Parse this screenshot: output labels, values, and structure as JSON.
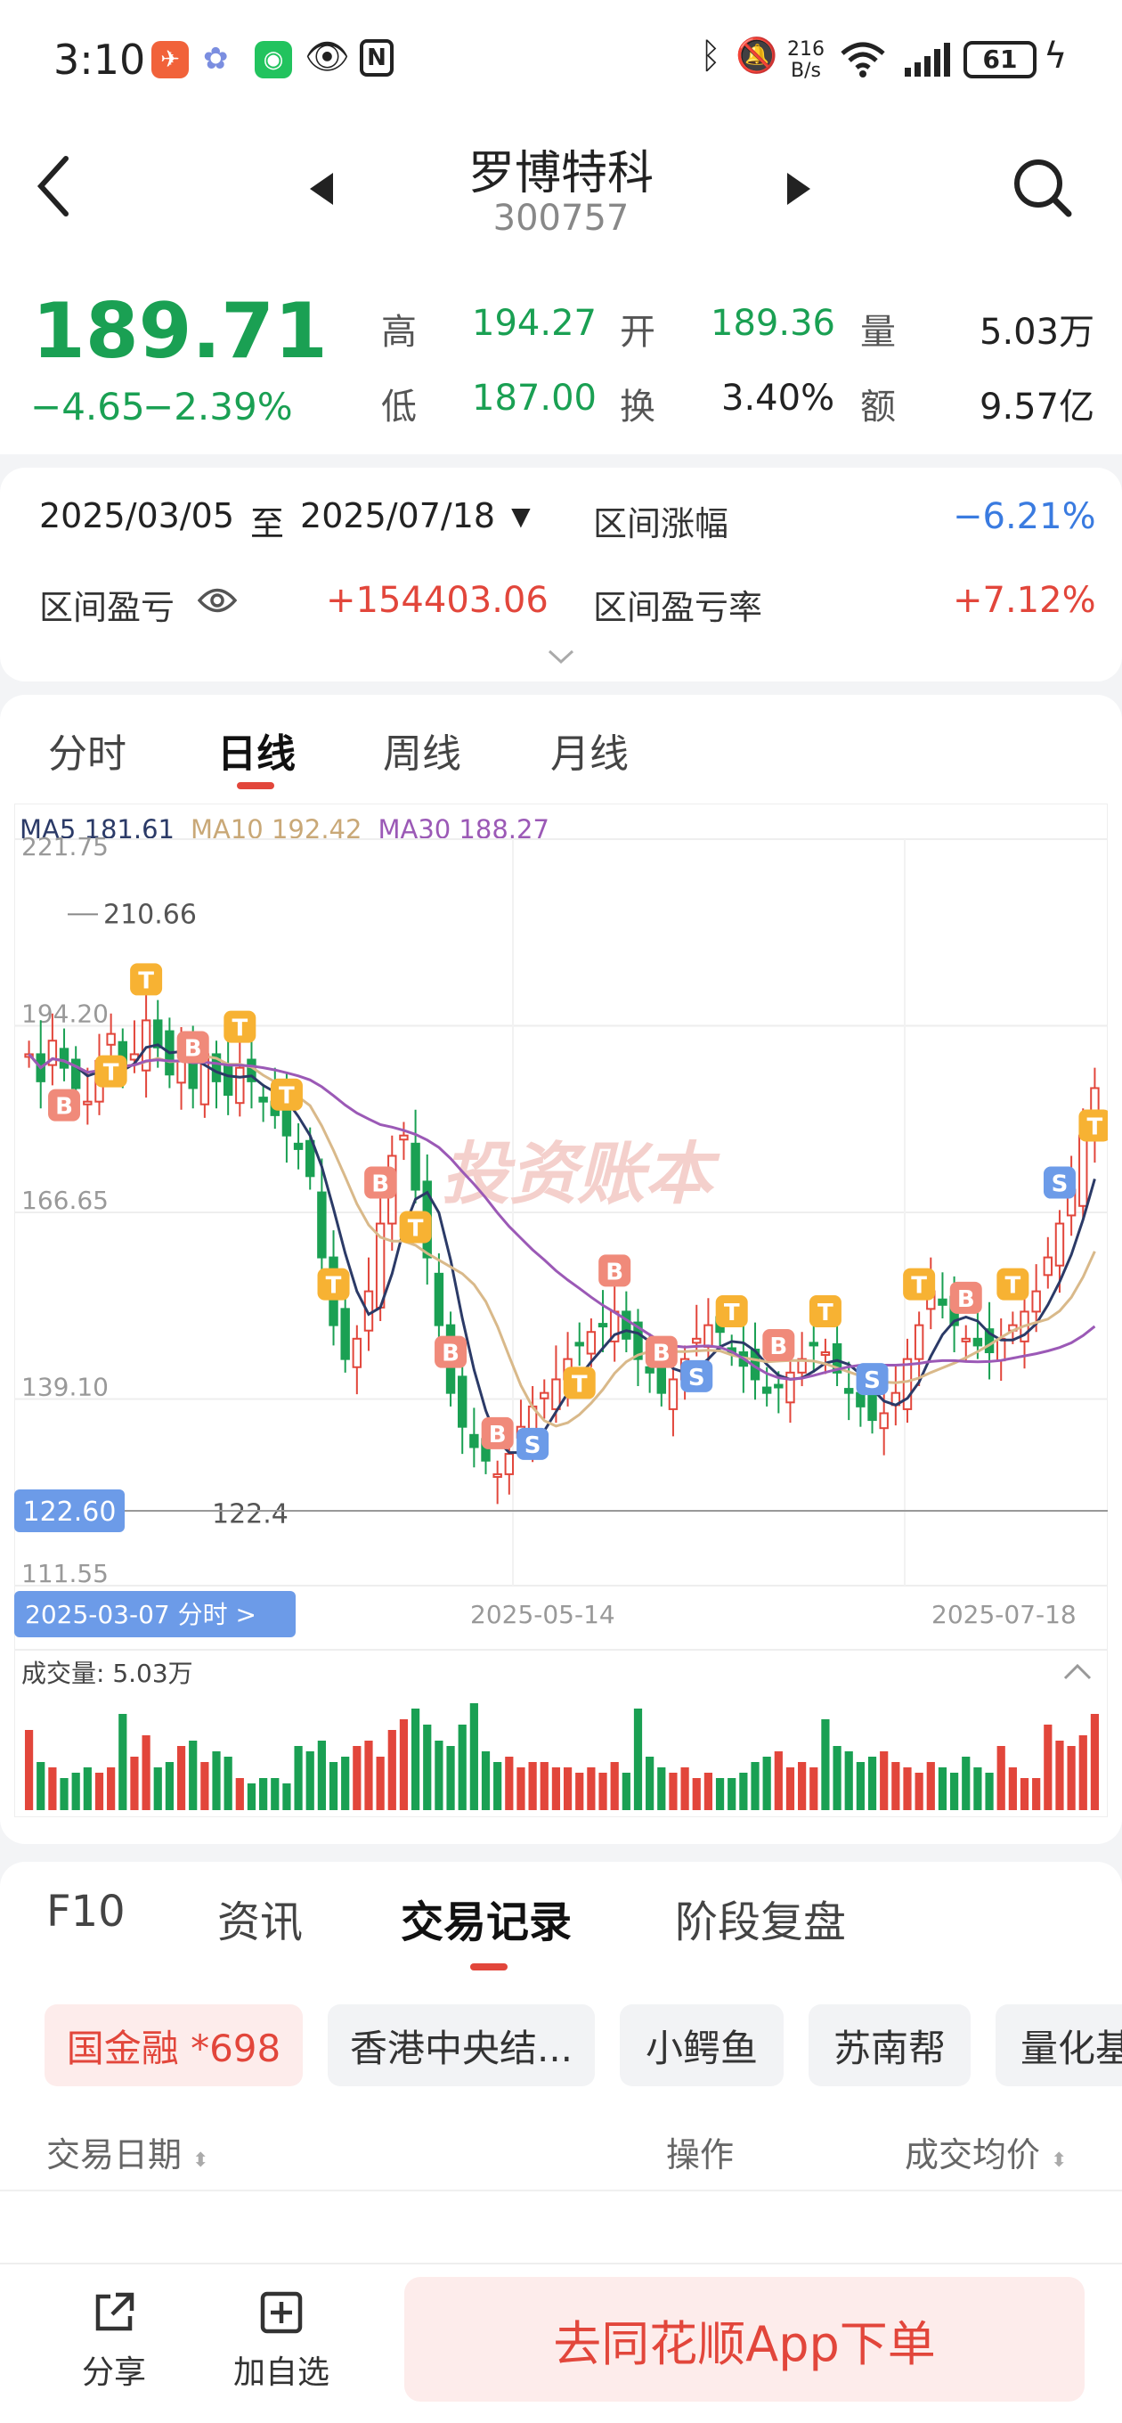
{
  "status_bar": {
    "time": "3:10",
    "net_speed_top": "216",
    "net_speed_bottom": "B/s",
    "battery": "61",
    "icons": [
      "feishu-icon",
      "flower-icon",
      "wechat-icon",
      "eye-icon",
      "nfc-icon",
      "bluetooth-icon",
      "mute-icon",
      "wifi-icon",
      "signal-icon",
      "battery-icon",
      "charging-icon"
    ]
  },
  "header": {
    "title": "罗博特科",
    "code": "300757"
  },
  "quote": {
    "price": "189.71",
    "change": "−4.65",
    "change_pct": "−2.39%",
    "high_label": "高",
    "high": "194.27",
    "open_label": "开",
    "open": "189.36",
    "volume_label": "量",
    "volume": "5.03万",
    "low_label": "低",
    "low": "187.00",
    "turnover_label": "换",
    "turnover": "3.40%",
    "amount_label": "额",
    "amount": "9.57亿"
  },
  "range": {
    "start": "2025/03/05",
    "to": "至",
    "end": "2025/07/18",
    "range_change_label": "区间涨幅",
    "range_change": "−6.21%",
    "pnl_label": "区间盈亏",
    "pnl": "+154403.06",
    "pnl_rate_label": "区间盈亏率",
    "pnl_rate": "+7.12%"
  },
  "chart_tabs": [
    "分时",
    "日线",
    "周线",
    "月线"
  ],
  "active_chart_tab": "日线",
  "ma_legend": {
    "ma5": "MA5 181.61",
    "ma10": "MA10 192.42",
    "ma30": "MA30 188.27"
  },
  "watermark": "投资账本",
  "colors": {
    "up": "#e2463b",
    "down": "#1aa053",
    "ma5": "#2b3a67",
    "ma10": "#d9b98a",
    "ma30": "#9b59b6",
    "marker_orange": "#f7b233",
    "marker_red": "#f08a7a",
    "marker_blue": "#6c9be8",
    "accent": "#e2463b"
  },
  "chart_data": {
    "type": "candlestick",
    "y_ticks": [
      "221.75",
      "194.20",
      "166.65",
      "139.10",
      "111.55"
    ],
    "ylim": [
      111.55,
      221.75
    ],
    "current_label": "122.60",
    "x_labels": [
      "2025-05-14",
      "2025-07-18"
    ],
    "start_button": "2025-03-07 分时 >",
    "max_annotation": "210.66",
    "min_annotation": "122.4",
    "close_series": [
      190,
      186,
      192,
      188,
      185,
      183,
      189,
      193,
      188,
      190,
      195,
      191,
      187,
      189,
      185,
      190,
      186,
      184,
      188,
      186,
      183,
      181,
      178,
      176,
      172,
      160,
      150,
      145,
      148,
      155,
      165,
      175,
      178,
      170,
      160,
      150,
      140,
      135,
      132,
      130,
      128,
      131,
      135,
      138,
      140,
      142,
      145,
      147,
      149,
      150,
      152,
      148,
      145,
      143,
      140,
      142,
      145,
      148,
      150,
      149,
      146,
      144,
      142,
      140,
      141,
      143,
      145,
      147,
      146,
      143,
      140,
      138,
      136,
      137,
      140,
      145,
      150,
      155,
      153,
      150,
      148,
      147,
      146,
      148,
      150,
      152,
      155,
      160,
      165,
      170,
      178,
      185
    ],
    "volume_label": "成交量:",
    "volume_value": "5.03万",
    "volume_series": [
      0.75,
      0.45,
      0.4,
      0.3,
      0.35,
      0.4,
      0.35,
      0.4,
      0.9,
      0.5,
      0.7,
      0.4,
      0.45,
      0.6,
      0.65,
      0.45,
      0.55,
      0.5,
      0.3,
      0.25,
      0.3,
      0.3,
      0.25,
      0.6,
      0.55,
      0.65,
      0.45,
      0.5,
      0.6,
      0.65,
      0.5,
      0.75,
      0.85,
      0.95,
      0.8,
      0.65,
      0.6,
      0.8,
      1.0,
      0.55,
      0.45,
      0.5,
      0.4,
      0.45,
      0.45,
      0.4,
      0.4,
      0.35,
      0.4,
      0.35,
      0.45,
      0.35,
      0.95,
      0.5,
      0.4,
      0.35,
      0.4,
      0.3,
      0.35,
      0.3,
      0.3,
      0.35,
      0.45,
      0.5,
      0.55,
      0.4,
      0.45,
      0.4,
      0.85,
      0.6,
      0.55,
      0.45,
      0.5,
      0.55,
      0.45,
      0.4,
      0.35,
      0.45,
      0.4,
      0.35,
      0.5,
      0.4,
      0.35,
      0.6,
      0.4,
      0.3,
      0.3,
      0.8,
      0.65,
      0.6,
      0.7,
      0.9
    ]
  },
  "info_tabs": [
    "F10",
    "资讯",
    "交易记录",
    "阶段复盘"
  ],
  "active_info_tab": "交易记录",
  "chips": [
    "国金融 *698",
    "香港中央结...",
    "小鳄鱼",
    "苏南帮",
    "量化基"
  ],
  "table_headers": {
    "date": "交易日期",
    "op": "操作",
    "price": "成交均价"
  },
  "bottom": {
    "share": "分享",
    "add": "加自选",
    "order": "去同花顺App下单"
  }
}
